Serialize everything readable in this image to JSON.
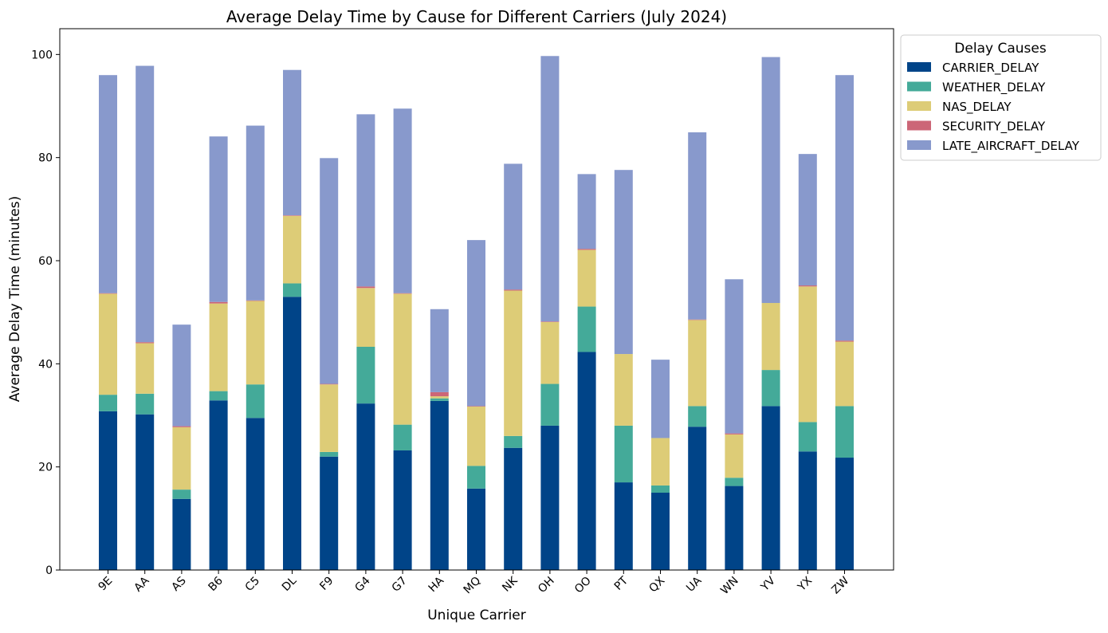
{
  "chart_data": {
    "type": "bar",
    "stacked": true,
    "title": "Average Delay Time by Cause for Different Carriers (July 2024)",
    "xlabel": "Unique Carrier",
    "ylabel": "Average Delay Time (minutes)",
    "ylim": [
      0,
      105
    ],
    "yticks": [
      0,
      20,
      40,
      60,
      80,
      100
    ],
    "grid": false,
    "legend": {
      "title": "Delay Causes",
      "placement": "outside-top-right"
    },
    "categories": [
      "9E",
      "AA",
      "AS",
      "B6",
      "C5",
      "DL",
      "F9",
      "G4",
      "G7",
      "HA",
      "MQ",
      "NK",
      "OH",
      "OO",
      "PT",
      "QX",
      "UA",
      "WN",
      "YV",
      "YX",
      "ZW"
    ],
    "series": [
      {
        "name": "CARRIER_DELAY",
        "color": "#004488",
        "values": [
          30.8,
          30.2,
          13.8,
          32.9,
          29.5,
          53.0,
          22.0,
          32.3,
          23.2,
          32.8,
          15.8,
          23.7,
          28.0,
          42.3,
          17.0,
          15.0,
          27.8,
          16.3,
          31.8,
          23.0,
          21.8
        ]
      },
      {
        "name": "WEATHER_DELAY",
        "color": "#44AA99",
        "values": [
          3.2,
          4.0,
          1.8,
          1.8,
          6.5,
          2.6,
          0.9,
          11.0,
          5.0,
          0.5,
          4.4,
          2.3,
          8.1,
          8.8,
          11.0,
          1.4,
          4.0,
          1.6,
          7.0,
          5.7,
          10.0
        ]
      },
      {
        "name": "NAS_DELAY",
        "color": "#DDCC77",
        "values": [
          19.6,
          9.8,
          12.1,
          17.0,
          16.2,
          13.1,
          13.1,
          11.4,
          25.4,
          0.4,
          11.5,
          28.2,
          12.0,
          11.0,
          13.9,
          9.2,
          16.7,
          8.4,
          13.0,
          26.3,
          12.5
        ]
      },
      {
        "name": "SECURITY_DELAY",
        "color": "#CC6677",
        "values": [
          0.1,
          0.2,
          0.2,
          0.3,
          0.1,
          0.1,
          0.1,
          0.3,
          0.1,
          0.8,
          0.1,
          0.2,
          0.1,
          0.2,
          0.0,
          0.0,
          0.1,
          0.2,
          0.0,
          0.2,
          0.2
        ]
      },
      {
        "name": "LATE_AIRCRAFT_DELAY",
        "color": "#8899CC",
        "values": [
          42.3,
          53.6,
          19.7,
          32.1,
          33.9,
          28.2,
          43.8,
          33.4,
          35.8,
          16.1,
          32.2,
          24.4,
          51.5,
          14.5,
          35.7,
          15.2,
          36.3,
          29.9,
          47.7,
          25.5,
          51.5
        ]
      }
    ]
  }
}
